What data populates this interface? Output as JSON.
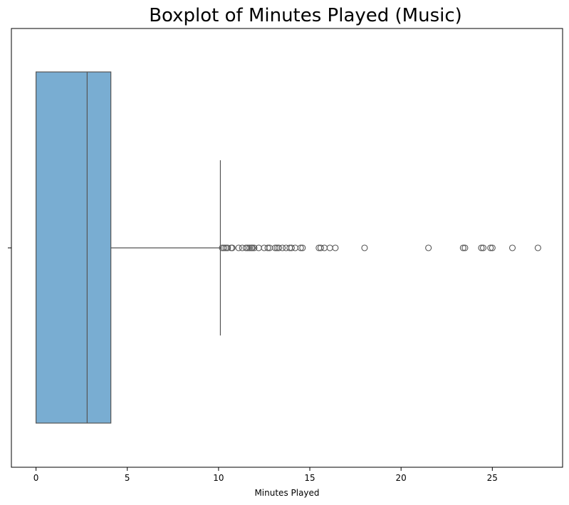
{
  "chart_data": {
    "type": "boxplot",
    "title": "Boxplot of Minutes Played (Music)",
    "xlabel": "Minutes Played",
    "ylabel": "",
    "xlim": [
      -1.35,
      28.85
    ],
    "xticks": [
      0,
      5,
      10,
      15,
      20,
      25
    ],
    "xtick_labels": [
      "0",
      "5",
      "10",
      "15",
      "20",
      "25"
    ],
    "grid": false,
    "orientation": "horizontal",
    "box": {
      "whisker_low": 0,
      "q1": 0,
      "median": 2.8,
      "q3": 4.1,
      "whisker_high": 10.1
    },
    "outliers": [
      10.2,
      10.3,
      10.4,
      10.5,
      10.7,
      10.75,
      11.1,
      11.3,
      11.5,
      11.6,
      11.7,
      11.8,
      11.85,
      11.95,
      12.2,
      12.5,
      12.7,
      12.8,
      13.1,
      13.2,
      13.3,
      13.5,
      13.7,
      13.9,
      14.0,
      14.2,
      14.5,
      14.6,
      15.5,
      15.6,
      15.8,
      16.1,
      16.4,
      18.0,
      21.5,
      23.4,
      23.5,
      24.4,
      24.5,
      24.9,
      25.0,
      26.1,
      27.5
    ],
    "colors": {
      "box_fill": "#79add2",
      "line": "#555555",
      "outlier_edge": "#555555"
    }
  }
}
